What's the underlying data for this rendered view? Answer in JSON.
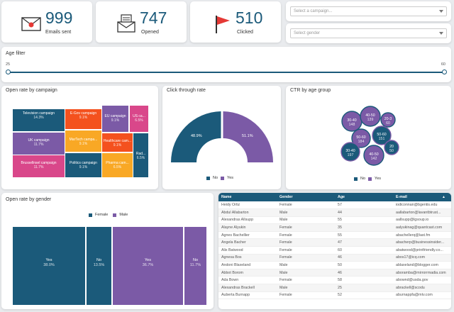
{
  "kpis": [
    {
      "value": "999",
      "label": "Emails sent",
      "icon": "envelope-icon"
    },
    {
      "value": "747",
      "label": "Opened",
      "icon": "open-mail-icon"
    },
    {
      "value": "510",
      "label": "Clicked",
      "icon": "flag-icon"
    }
  ],
  "filters": {
    "campaign_placeholder": "Select a campaign...",
    "gender_placeholder": "Select gender"
  },
  "age_filter": {
    "title": "Age filter",
    "min": "25",
    "max": "60"
  },
  "treemap": {
    "title": "Open rate by campaign",
    "tiles": [
      {
        "name": "Television campaign",
        "value": "14.3%"
      },
      {
        "name": "E-Gov campaign",
        "value": "9.1%"
      },
      {
        "name": "EU campaign",
        "value": "9.1%"
      },
      {
        "name": "US ca...",
        "value": "6.5%"
      },
      {
        "name": "UK campaign",
        "value": "11.7%"
      },
      {
        "name": "MarTech campa...",
        "value": "9.1%"
      },
      {
        "name": "Healthcare cam...",
        "value": "9.1%"
      },
      {
        "name": "Brussellnsel campaign",
        "value": "11.7%"
      },
      {
        "name": "Politics campaign",
        "value": "9.1%"
      },
      {
        "name": "Pharma cam...",
        "value": "6.5%"
      },
      {
        "name": "Rad...",
        "value": "6.5%"
      }
    ]
  },
  "ctr": {
    "title": "Click through rate",
    "no": "48.9%",
    "yes": "51.1%",
    "legend_no": "No",
    "legend_yes": "Yes"
  },
  "age": {
    "title": "CTR by age group",
    "bubbles": [
      {
        "range": "30-40",
        "count": "148"
      },
      {
        "range": "40-50",
        "count": "139"
      },
      {
        "range": "20-3",
        "count": "60"
      },
      {
        "range": "50-60",
        "count": "184"
      },
      {
        "range": "50-60",
        "count": "151"
      },
      {
        "range": "20",
        "count": "50"
      },
      {
        "range": "30-40",
        "count": "197"
      },
      {
        "range": "40-50",
        "count": "142"
      }
    ],
    "legend_no": "No",
    "legend_yes": "Yes"
  },
  "gender": {
    "title": "Open rate by gender",
    "legend_female": "Female",
    "legend_male": "Male",
    "tiles": [
      {
        "label": "Yes",
        "value": "38.0%"
      },
      {
        "label": "No",
        "value": "13.5%"
      },
      {
        "label": "Yes",
        "value": "36.7%"
      },
      {
        "label": "No",
        "value": "11.7%"
      }
    ]
  },
  "table": {
    "headers": [
      "Name",
      "Gender",
      "Age",
      "E-mail"
    ],
    "rows": [
      [
        "Heidy Ortiz",
        "Female",
        "57",
        "iodiconnan@bgentis.edu"
      ],
      [
        "Abdul Allabarton",
        "Male",
        "44",
        "aallabarton@lavantbtrust..."
      ],
      [
        "Alexandras Allsupp",
        "Male",
        "55",
        "aallsupp@lgsoup.io"
      ],
      [
        "Alayne Alyukin",
        "Female",
        "35",
        "aalyukinag@quantcast.com"
      ],
      [
        "Agnes Bachellier",
        "Female",
        "55",
        "abachellerq@last.fm"
      ],
      [
        "Angela Bacher",
        "Female",
        "47",
        "abacherp@businessinsider..."
      ],
      [
        "Alix Batwood",
        "Female",
        "60",
        "abatwood@printfriendly.co..."
      ],
      [
        "Agnesa Bos",
        "Female",
        "46",
        "abos17@icq.com"
      ],
      [
        "Andoni Blaxeland",
        "Male",
        "50",
        "ablaxeland@blogger.com"
      ],
      [
        "Abbot Borom",
        "Male",
        "46",
        "aboramba@mirrorrmadia.com"
      ],
      [
        "Ada Bown",
        "Female",
        "58",
        "abownd@usda.gov"
      ],
      [
        "Alexandras Brackell",
        "Male",
        "25",
        "abrackell@scodu"
      ],
      [
        "Auberta Burnapp",
        "Female",
        "52",
        "aburnappfa@mtv.com"
      ]
    ]
  }
}
